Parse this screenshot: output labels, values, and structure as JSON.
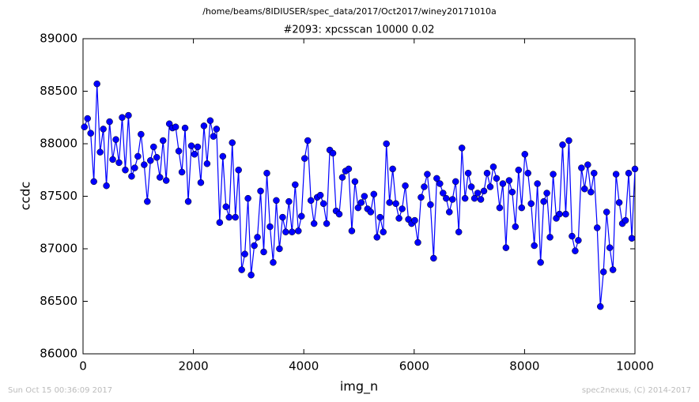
{
  "chart_data": {
    "type": "line",
    "suptitle": "/home/beams/8IDIUSER/spec_data/2017/Oct2017/winey20171010a",
    "title": "#2093: xpcsscan 10000 0.02",
    "xlabel": "img_n",
    "ylabel": "ccdc",
    "annotations": [
      "Sun Oct 15 00:36:09 2017",
      "spec2nexus, (C) 2014-2017"
    ],
    "color": "#0000ff",
    "xlim": [
      0,
      10000
    ],
    "xticks": [
      0,
      2000,
      4000,
      6000,
      8000,
      10000
    ],
    "ylim": [
      86000,
      89000
    ],
    "yticks": [
      86000,
      86500,
      87000,
      87500,
      88000,
      88500,
      89000
    ],
    "x": [
      25,
      82,
      139,
      196,
      253,
      310,
      367,
      424,
      481,
      538,
      595,
      652,
      709,
      766,
      823,
      880,
      937,
      994,
      1051,
      1108,
      1165,
      1222,
      1279,
      1336,
      1393,
      1450,
      1507,
      1564,
      1621,
      1678,
      1735,
      1792,
      1849,
      1906,
      1963,
      2020,
      2077,
      2134,
      2191,
      2248,
      2305,
      2362,
      2419,
      2476,
      2533,
      2590,
      2647,
      2704,
      2761,
      2818,
      2875,
      2932,
      2989,
      3046,
      3103,
      3160,
      3217,
      3274,
      3331,
      3388,
      3445,
      3502,
      3559,
      3616,
      3673,
      3730,
      3787,
      3844,
      3901,
      3958,
      4015,
      4072,
      4129,
      4186,
      4243,
      4300,
      4357,
      4414,
      4471,
      4528,
      4585,
      4642,
      4699,
      4756,
      4813,
      4870,
      4927,
      4984,
      5041,
      5098,
      5155,
      5212,
      5269,
      5326,
      5383,
      5440,
      5497,
      5554,
      5611,
      5668,
      5725,
      5782,
      5839,
      5896,
      5953,
      6010,
      6067,
      6124,
      6181,
      6238,
      6295,
      6352,
      6409,
      6466,
      6523,
      6580,
      6637,
      6694,
      6751,
      6808,
      6865,
      6922,
      6979,
      7036,
      7093,
      7150,
      7207,
      7264,
      7321,
      7378,
      7435,
      7492,
      7549,
      7606,
      7663,
      7720,
      7777,
      7834,
      7891,
      7948,
      8005,
      8062,
      8119,
      8176,
      8233,
      8290,
      8347,
      8404,
      8461,
      8518,
      8575,
      8632,
      8689,
      8746,
      8803,
      8860,
      8917,
      8974,
      9031,
      9088,
      9145,
      9202,
      9259,
      9316,
      9373,
      9430,
      9487,
      9544,
      9601,
      9658,
      9715,
      9772,
      9829,
      9886,
      9943,
      10000
    ],
    "values": [
      88160,
      88240,
      88100,
      87640,
      88570,
      87920,
      88140,
      87600,
      88210,
      87850,
      88040,
      87820,
      88250,
      87750,
      88270,
      87690,
      87770,
      87880,
      88090,
      87800,
      87450,
      87840,
      87970,
      87870,
      87680,
      88030,
      87650,
      88190,
      88150,
      88160,
      87930,
      87730,
      88150,
      87450,
      87980,
      87900,
      87970,
      87630,
      88170,
      87810,
      88220,
      88070,
      88140,
      87250,
      87880,
      87400,
      87300,
      88010,
      87300,
      87750,
      86800,
      86950,
      87480,
      86750,
      87030,
      87110,
      87550,
      86970,
      87720,
      87210,
      86870,
      87460,
      87000,
      87300,
      87160,
      87450,
      87160,
      87610,
      87170,
      87310,
      87860,
      88030,
      87460,
      87240,
      87490,
      87510,
      87430,
      87240,
      87940,
      87910,
      87360,
      87330,
      87680,
      87740,
      87760,
      87170,
      87640,
      87390,
      87440,
      87500,
      87380,
      87350,
      87520,
      87110,
      87300,
      87160,
      88000,
      87440,
      87760,
      87430,
      87290,
      87380,
      87600,
      87280,
      87240,
      87270,
      87060,
      87490,
      87590,
      87710,
      87420,
      86910,
      87670,
      87620,
      87530,
      87480,
      87350,
      87470,
      87640,
      87160,
      87960,
      87480,
      87720,
      87590,
      87480,
      87530,
      87470,
      87550,
      87720,
      87590,
      87780,
      87670,
      87390,
      87620,
      87010,
      87650,
      87540,
      87210,
      87750,
      87390,
      87900,
      87720,
      87430,
      87030,
      87620,
      86870,
      87450,
      87530,
      87110,
      87710,
      87290,
      87330,
      87990,
      87330,
      88030,
      87120,
      86980,
      87080,
      87770,
      87570,
      87800,
      87540,
      87720,
      87200,
      86450,
      86780,
      87350,
      87010,
      86800,
      87710,
      87440,
      87240,
      87270,
      87720,
      87100,
      87760
    ]
  }
}
